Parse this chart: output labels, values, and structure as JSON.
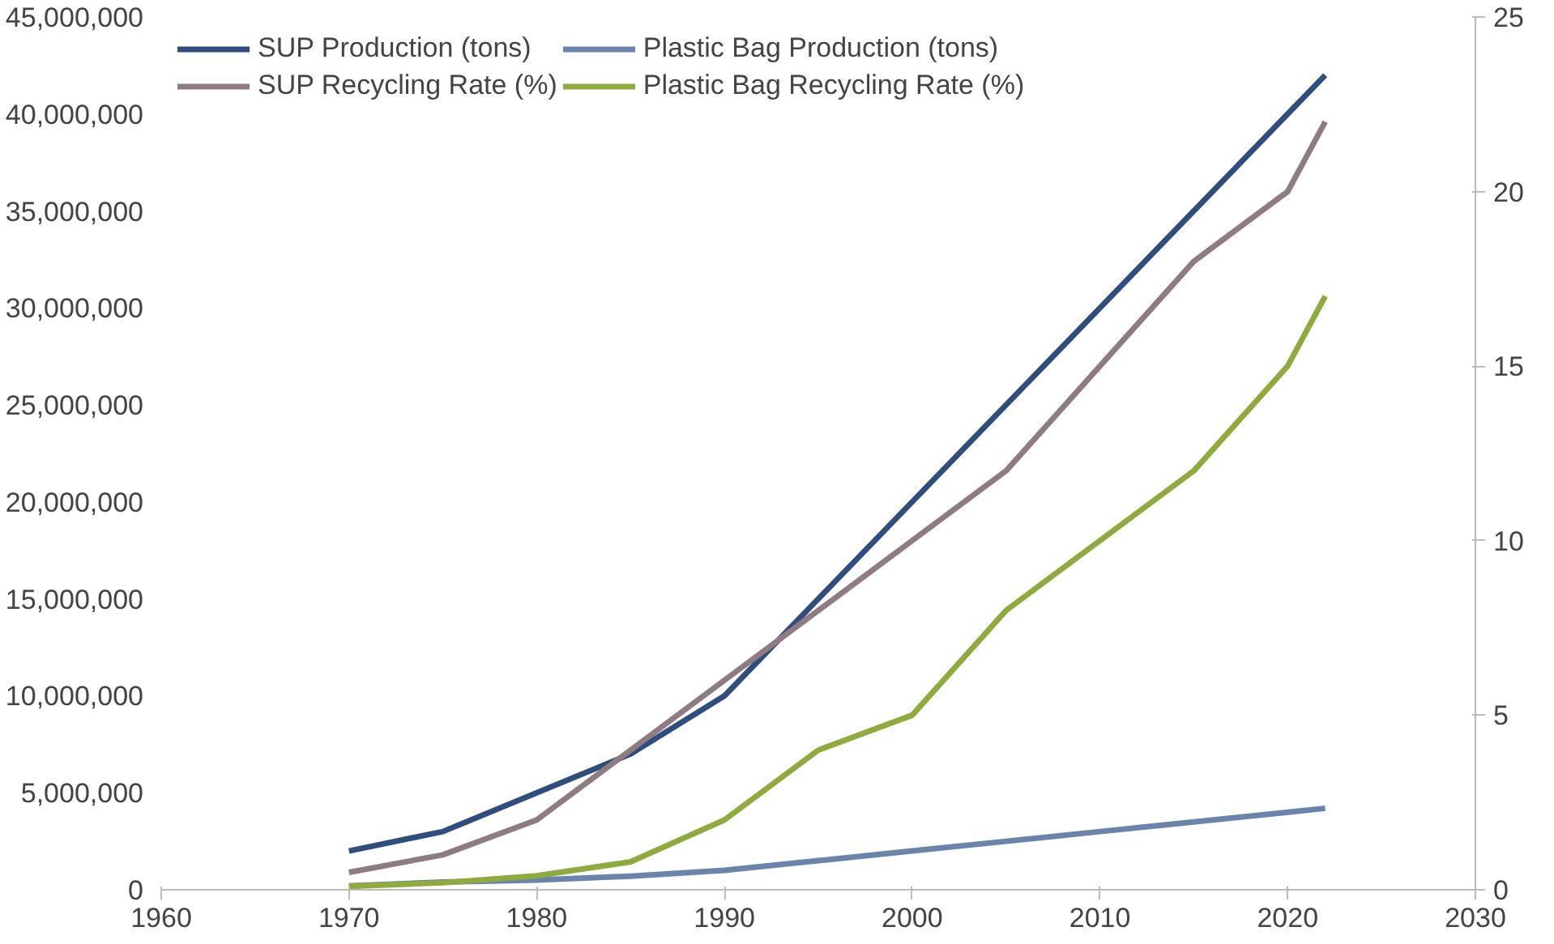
{
  "chart_data": {
    "type": "line",
    "x": [
      1970,
      1975,
      1980,
      1985,
      1990,
      1995,
      2000,
      2005,
      2010,
      2015,
      2020,
      2022
    ],
    "xlim": [
      1960,
      2030
    ],
    "xticks": [
      1960,
      1970,
      1980,
      1990,
      2000,
      2010,
      2020,
      2030
    ],
    "ylim": [
      0,
      45000000
    ],
    "yticks": [
      {
        "value": 0,
        "label": "0"
      },
      {
        "value": 5000000,
        "label": "5,000,000"
      },
      {
        "value": 10000000,
        "label": "10,000,000"
      },
      {
        "value": 15000000,
        "label": "15,000,000"
      },
      {
        "value": 20000000,
        "label": "20,000,000"
      },
      {
        "value": 25000000,
        "label": "25,000,000"
      },
      {
        "value": 30000000,
        "label": "30,000,000"
      },
      {
        "value": 35000000,
        "label": "35,000,000"
      },
      {
        "value": 40000000,
        "label": "40,000,000"
      },
      {
        "value": 45000000,
        "label": "45,000,000"
      }
    ],
    "y2lim": [
      0,
      25
    ],
    "y2ticks": [
      0,
      5,
      10,
      15,
      20,
      25
    ],
    "legend": "top left",
    "grid": false,
    "series": [
      {
        "name": "SUP Production (tons)",
        "color": "#2f4e7e",
        "values": [
          2000000,
          3000000,
          5000000,
          7000000,
          10000000,
          15000000,
          20000000,
          25000000,
          30000000,
          35000000,
          40000000,
          42000000
        ]
      },
      {
        "name": "Plastic Bag Production (tons)",
        "color": "#6a84ab",
        "values": [
          200000,
          400000,
          500000,
          700000,
          1000000,
          1500000,
          2000000,
          2500000,
          3000000,
          3500000,
          4000000,
          4200000
        ]
      },
      {
        "name": "SUP Recycling Rate (%)",
        "color": "#8e7c82",
        "axis": "y2",
        "values": [
          0.5,
          1,
          2,
          4,
          6,
          8,
          10,
          12,
          15,
          18,
          20,
          22
        ]
      },
      {
        "name": "Plastic Bag Recycling Rate (%)",
        "color": "#8faa3d",
        "axis": "y2",
        "values": [
          0.1,
          0.2,
          0.4,
          0.8,
          2,
          4,
          5,
          8,
          10,
          12,
          15,
          17
        ]
      }
    ]
  }
}
